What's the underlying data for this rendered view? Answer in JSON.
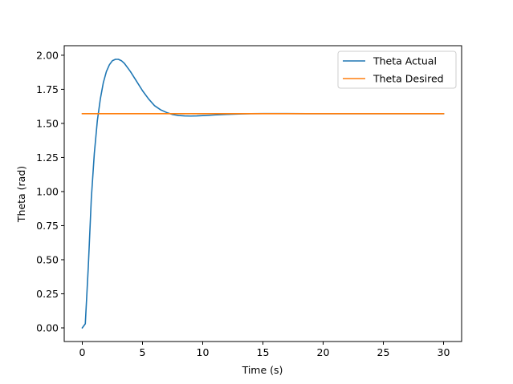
{
  "chart_data": {
    "type": "line",
    "title": "",
    "xlabel": "Time (s)",
    "ylabel": "Theta (rad)",
    "xlim": [
      -1.5,
      31.5
    ],
    "ylim": [
      -0.1,
      2.07
    ],
    "x_ticks": [
      0,
      5,
      10,
      15,
      20,
      25,
      30
    ],
    "x_tick_labels": [
      "0",
      "5",
      "10",
      "15",
      "20",
      "25",
      "30"
    ],
    "y_ticks": [
      0.0,
      0.25,
      0.5,
      0.75,
      1.0,
      1.25,
      1.5,
      1.75,
      2.0
    ],
    "y_tick_labels": [
      "0.00",
      "0.25",
      "0.50",
      "0.75",
      "1.00",
      "1.25",
      "1.50",
      "1.75",
      "2.00"
    ],
    "grid": false,
    "legend_position": "top-right",
    "series": [
      {
        "name": "Theta Actual",
        "color": "#1f77b4",
        "x": [
          0,
          0.25,
          0.5,
          0.75,
          1.0,
          1.25,
          1.5,
          1.75,
          2.0,
          2.25,
          2.5,
          2.75,
          3.0,
          3.25,
          3.5,
          3.75,
          4.0,
          4.5,
          5.0,
          5.5,
          6.0,
          6.5,
          7.0,
          7.5,
          8.0,
          8.5,
          9.0,
          9.5,
          10.0,
          11.0,
          12.0,
          13.0,
          14.0,
          15.0,
          17.0,
          20.0,
          25.0,
          30.0
        ],
        "y": [
          0.0,
          0.03,
          0.45,
          0.95,
          1.28,
          1.52,
          1.68,
          1.8,
          1.88,
          1.93,
          1.96,
          1.97,
          1.97,
          1.96,
          1.94,
          1.91,
          1.88,
          1.81,
          1.74,
          1.68,
          1.63,
          1.6,
          1.58,
          1.565,
          1.558,
          1.555,
          1.554,
          1.555,
          1.557,
          1.562,
          1.566,
          1.569,
          1.571,
          1.572,
          1.572,
          1.571,
          1.571,
          1.571
        ]
      },
      {
        "name": "Theta Desired",
        "color": "#ff7f0e",
        "x": [
          0,
          30
        ],
        "y": [
          1.571,
          1.571
        ]
      }
    ]
  }
}
